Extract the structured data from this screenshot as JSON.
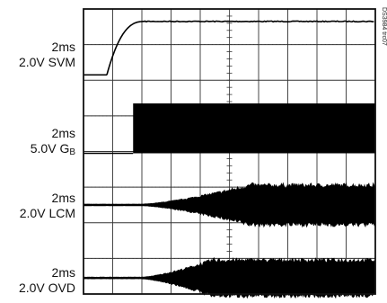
{
  "figure_id": "DS3984 trc07",
  "chart_data": {
    "type": "line",
    "title": "",
    "grid": true,
    "grid_divisions": {
      "horizontal": 10,
      "vertical": 8
    },
    "x_unit_per_div": "2ms",
    "channels": [
      {
        "scale_time": "2ms",
        "scale_volt": "2.0V",
        "name": "SVM",
        "waveform": "step",
        "t_rise_start_div": 0.8,
        "t_rise_end_div": 2.1,
        "low_level_div": 0.0,
        "high_level_div": 1.5
      },
      {
        "scale_time": "2ms",
        "scale_volt": "5.0V",
        "name": "G",
        "name_subscript": "B",
        "waveform": "burst",
        "t_on_div": 1.7,
        "burst_amplitude_div": 1.4,
        "baseline_level_div": 0.0
      },
      {
        "scale_time": "2ms",
        "scale_volt": "2.0V",
        "name": "LCM",
        "waveform": "growing-oscillation",
        "t_start_div": 2.0,
        "t_full_div": 5.8,
        "max_amplitude_div": 0.55
      },
      {
        "scale_time": "2ms",
        "scale_volt": "2.0V",
        "name": "OVD",
        "waveform": "growing-oscillation",
        "t_start_div": 2.0,
        "t_full_div": 4.5,
        "max_amplitude_div": 0.5
      }
    ]
  }
}
